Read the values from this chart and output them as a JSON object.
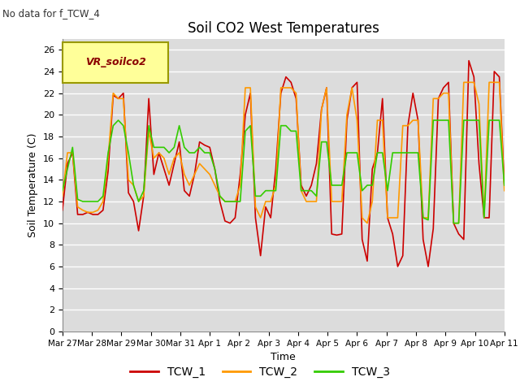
{
  "title": "Soil CO2 West Temperatures",
  "subtitle": "No data for f_TCW_4",
  "xlabel": "Time",
  "ylabel": "Soil Temperature (C)",
  "ylim": [
    0,
    27
  ],
  "yticks": [
    0,
    2,
    4,
    6,
    8,
    10,
    12,
    14,
    16,
    18,
    20,
    22,
    24,
    26
  ],
  "legend_label": "VR_soilco2",
  "bg_color": "#dcdcdc",
  "line1_color": "#cc0000",
  "line2_color": "#ff9900",
  "line3_color": "#33cc00",
  "xtick_labels": [
    "Mar 27",
    "Mar 28",
    "Mar 29",
    "Mar 30",
    "Mar 31",
    "Apr 1",
    "Apr 2",
    "Apr 3",
    "Apr 4",
    "Apr 5",
    "Apr 6",
    "Apr 7",
    "Apr 8",
    "Apr 9",
    "Apr 10",
    "Apr 11"
  ],
  "TCW_1": [
    11.2,
    15.5,
    16.5,
    10.8,
    10.8,
    11.0,
    10.8,
    10.8,
    11.2,
    14.8,
    21.8,
    21.5,
    22.0,
    12.8,
    12.0,
    9.3,
    12.5,
    21.5,
    14.5,
    16.5,
    15.0,
    13.5,
    15.5,
    17.5,
    13.0,
    12.5,
    14.5,
    17.5,
    17.2,
    17.0,
    15.0,
    12.0,
    10.2,
    10.0,
    10.5,
    14.5,
    20.0,
    22.0,
    10.5,
    7.0,
    11.5,
    10.5,
    15.0,
    22.0,
    23.5,
    23.0,
    21.5,
    13.5,
    12.5,
    13.5,
    15.5,
    20.5,
    22.5,
    9.0,
    8.9,
    9.0,
    19.5,
    22.5,
    23.0,
    8.5,
    6.5,
    15.0,
    16.5,
    21.5,
    10.5,
    9.0,
    6.0,
    7.0,
    19.0,
    22.0,
    19.5,
    8.5,
    6.0,
    9.5,
    21.5,
    22.5,
    23.0,
    10.0,
    9.0,
    8.5,
    25.0,
    23.5,
    15.5,
    10.5,
    10.5,
    24.0,
    23.5,
    13.5
  ],
  "TCW_2": [
    12.5,
    16.5,
    16.5,
    11.5,
    11.2,
    11.0,
    11.0,
    11.2,
    12.0,
    16.0,
    22.0,
    21.5,
    21.5,
    14.0,
    13.5,
    12.0,
    12.5,
    18.5,
    16.0,
    16.5,
    16.0,
    14.5,
    16.0,
    16.5,
    14.5,
    13.5,
    14.5,
    15.5,
    15.0,
    14.5,
    13.5,
    12.5,
    12.0,
    12.0,
    12.0,
    13.5,
    22.5,
    22.5,
    11.5,
    10.5,
    12.0,
    12.0,
    13.5,
    22.5,
    22.5,
    22.5,
    22.0,
    13.0,
    12.0,
    12.0,
    12.0,
    20.5,
    22.5,
    12.0,
    12.0,
    12.0,
    20.0,
    22.5,
    19.5,
    10.5,
    10.0,
    12.0,
    19.5,
    19.5,
    10.5,
    10.5,
    10.5,
    19.0,
    19.0,
    19.5,
    19.5,
    10.5,
    10.5,
    21.5,
    21.5,
    22.0,
    22.0,
    10.0,
    10.0,
    23.0,
    23.0,
    23.0,
    21.0,
    10.5,
    23.0,
    23.0,
    23.0,
    13.0
  ],
  "TCW_3": [
    13.0,
    15.0,
    17.0,
    12.2,
    12.0,
    12.0,
    12.0,
    12.0,
    12.5,
    16.5,
    19.0,
    19.5,
    19.0,
    16.5,
    13.5,
    12.0,
    13.0,
    19.0,
    17.0,
    17.0,
    17.0,
    16.5,
    17.0,
    19.0,
    17.0,
    16.5,
    16.5,
    17.0,
    16.5,
    16.5,
    15.0,
    12.5,
    12.0,
    12.0,
    12.0,
    12.0,
    18.5,
    19.0,
    12.5,
    12.5,
    13.0,
    13.0,
    13.0,
    19.0,
    19.0,
    18.5,
    18.5,
    13.0,
    13.0,
    13.0,
    12.5,
    17.5,
    17.5,
    13.5,
    13.5,
    13.5,
    16.5,
    16.5,
    16.5,
    13.0,
    13.5,
    13.5,
    16.5,
    16.5,
    13.0,
    16.5,
    16.5,
    16.5,
    16.5,
    16.5,
    16.5,
    10.5,
    10.3,
    19.5,
    19.5,
    19.5,
    19.5,
    10.0,
    10.0,
    19.5,
    19.5,
    19.5,
    19.5,
    10.5,
    19.5,
    19.5,
    19.5,
    13.5
  ]
}
